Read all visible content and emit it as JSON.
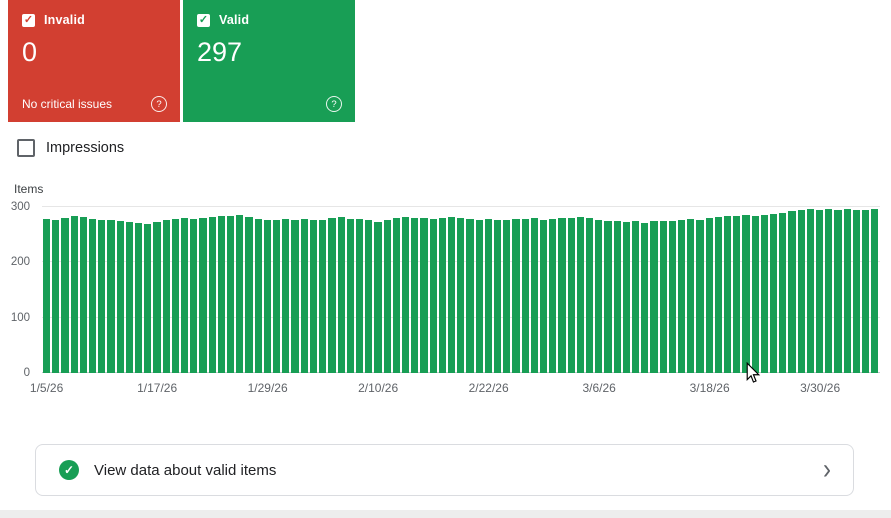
{
  "icons": {
    "checkbox_check": "✓",
    "valid_check": "✓",
    "help": "?",
    "chevron_right": "›"
  },
  "cards": {
    "invalid": {
      "label": "Invalid",
      "count": "0",
      "subtitle": "No critical issues",
      "color": "#d23f31",
      "checked": true
    },
    "valid": {
      "label": "Valid",
      "count": "297",
      "color": "#189e55",
      "checked": true
    }
  },
  "impressions_toggle": {
    "label": "Impressions",
    "checked": false
  },
  "chart_data": {
    "type": "bar",
    "title": "",
    "ylabel": "Items",
    "xlabel": "",
    "ylim": [
      0,
      300
    ],
    "yticks": [
      0,
      100,
      200,
      300
    ],
    "grid": true,
    "bar_color": "#189e55",
    "x_tick_labels": [
      "1/5/26",
      "1/17/26",
      "1/29/26",
      "2/10/26",
      "2/22/26",
      "3/6/26",
      "3/18/26",
      "3/30/26"
    ],
    "x_tick_indices": [
      0,
      12,
      24,
      36,
      48,
      60,
      72,
      84
    ],
    "values": [
      278,
      276,
      280,
      284,
      282,
      279,
      277,
      276,
      274,
      273,
      272,
      270,
      273,
      277,
      279,
      281,
      278,
      280,
      282,
      283,
      284,
      285,
      282,
      278,
      277,
      276,
      278,
      277,
      279,
      276,
      277,
      280,
      282,
      279,
      278,
      277,
      273,
      276,
      280,
      282,
      281,
      280,
      278,
      280,
      282,
      280,
      278,
      276,
      278,
      277,
      276,
      279,
      278,
      280,
      277,
      278,
      280,
      281,
      282,
      280,
      276,
      275,
      274,
      273,
      274,
      272,
      274,
      275,
      274,
      276,
      278,
      277,
      280,
      282,
      283,
      284,
      285,
      284,
      286,
      287,
      289,
      292,
      295,
      296,
      295,
      296,
      294,
      296,
      295,
      294,
      297
    ]
  },
  "footer_action": {
    "label": "View data about valid items"
  }
}
